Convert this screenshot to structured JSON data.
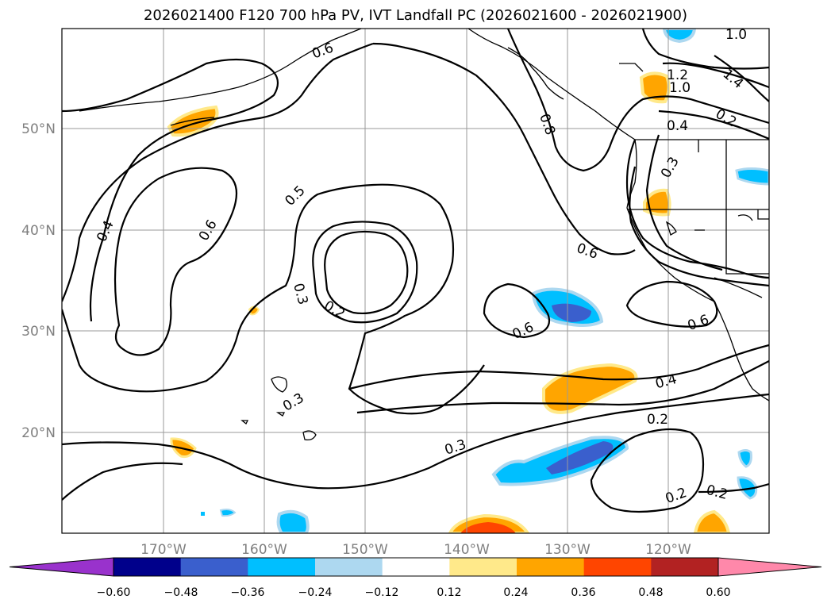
{
  "title": "2026021400 F120 700 hPa PV, IVT Landfall PC (2026021600 - 2026021900)",
  "axes": {
    "lon_labels": [
      "170°W",
      "160°W",
      "150°W",
      "140°W",
      "130°W",
      "120°W"
    ],
    "lat_labels": [
      "50°N",
      "40°N",
      "30°N",
      "20°N"
    ],
    "grid": true
  },
  "contour_labels": [
    "0.6",
    "1.0",
    "1.2",
    "1.0",
    "1.4",
    "0.8",
    "0.4",
    "0.2",
    "0.3",
    "0.5",
    "0.6",
    "0.4",
    "0.3",
    "0.2",
    "0.6",
    "0.6",
    "0.6",
    "0.3",
    "0.4",
    "0.2",
    "0.3",
    "0.2",
    "0.2"
  ],
  "colorbar": {
    "ticks": [
      "−0.60",
      "−0.48",
      "−0.36",
      "−0.24",
      "−0.12",
      "0.12",
      "0.24",
      "0.36",
      "0.48",
      "0.60"
    ],
    "colors": [
      "#9932cc",
      "#00008b",
      "#3a5fcd",
      "#00bfff",
      "#add8f0",
      "#ffffff",
      "#ffe98a",
      "#ffa500",
      "#ff4500",
      "#b22222",
      "#ff88aa"
    ]
  }
}
